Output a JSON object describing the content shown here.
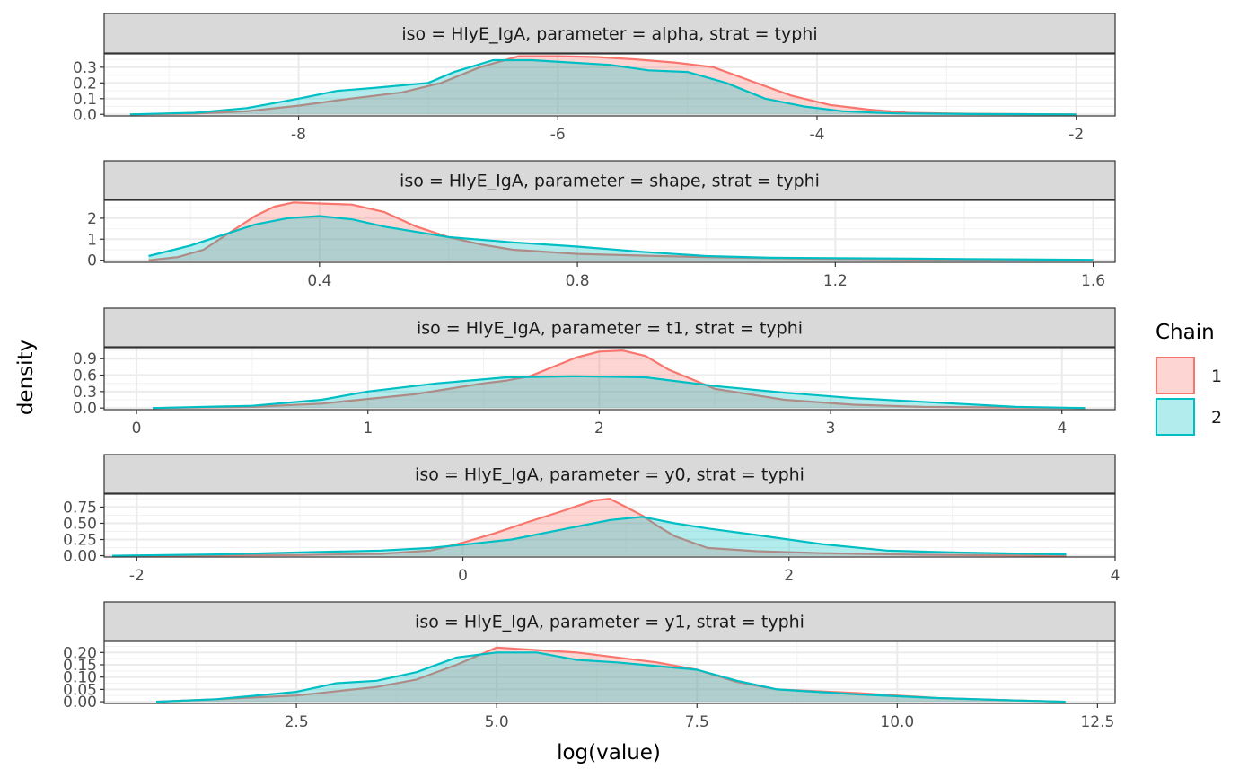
{
  "chart_data": {
    "type": "area",
    "xlabel": "log(value)",
    "ylabel": "density",
    "legend": {
      "title": "Chain",
      "placement": "right",
      "entries": [
        {
          "label": "1",
          "line_color": "#F8766D",
          "fill_color": "#F8766D"
        },
        {
          "label": "2",
          "line_color": "#00BFC4",
          "fill_color": "#00BFC4"
        }
      ]
    },
    "grid": true,
    "panels": [
      {
        "strip": "iso = HlyE_IgA, parameter = alpha, strat = typhi",
        "xlim": [
          -9.5,
          -1.7
        ],
        "ylim": [
          -0.01,
          0.385
        ],
        "x_ticks": [
          -8,
          -6,
          -4,
          -2
        ],
        "x_tick_labels": [
          "-8",
          "-6",
          "-4",
          "-2"
        ],
        "y_ticks": [
          0.0,
          0.1,
          0.2,
          0.3
        ],
        "y_tick_labels": [
          "0.0",
          "0.1",
          "0.2",
          "0.3"
        ],
        "series": [
          {
            "name": "1",
            "points": [
              [
                -9.3,
                0
              ],
              [
                -8.8,
                0.005
              ],
              [
                -8.4,
                0.02
              ],
              [
                -8.0,
                0.055
              ],
              [
                -7.6,
                0.1
              ],
              [
                -7.2,
                0.14
              ],
              [
                -6.9,
                0.2
              ],
              [
                -6.6,
                0.3
              ],
              [
                -6.3,
                0.37
              ],
              [
                -6.0,
                0.37
              ],
              [
                -5.7,
                0.365
              ],
              [
                -5.4,
                0.35
              ],
              [
                -5.1,
                0.33
              ],
              [
                -4.8,
                0.3
              ],
              [
                -4.5,
                0.21
              ],
              [
                -4.2,
                0.12
              ],
              [
                -3.9,
                0.06
              ],
              [
                -3.6,
                0.03
              ],
              [
                -3.3,
                0.01
              ],
              [
                -2.8,
                0.003
              ],
              [
                -2.0,
                0
              ]
            ]
          },
          {
            "name": "2",
            "points": [
              [
                -9.3,
                0
              ],
              [
                -8.8,
                0.01
              ],
              [
                -8.4,
                0.04
              ],
              [
                -8.0,
                0.1
              ],
              [
                -7.7,
                0.15
              ],
              [
                -7.4,
                0.17
              ],
              [
                -7.0,
                0.2
              ],
              [
                -6.8,
                0.27
              ],
              [
                -6.5,
                0.345
              ],
              [
                -6.2,
                0.345
              ],
              [
                -5.9,
                0.33
              ],
              [
                -5.6,
                0.315
              ],
              [
                -5.3,
                0.28
              ],
              [
                -5.0,
                0.27
              ],
              [
                -4.7,
                0.2
              ],
              [
                -4.4,
                0.1
              ],
              [
                -4.1,
                0.05
              ],
              [
                -3.8,
                0.02
              ],
              [
                -3.4,
                0.006
              ],
              [
                -2.8,
                0.002
              ],
              [
                -2.0,
                0
              ]
            ]
          }
        ]
      },
      {
        "strip": "iso = HlyE_IgA, parameter = shape, strat = typhi",
        "xlim": [
          0.066,
          1.634
        ],
        "ylim": [
          -0.1,
          2.85
        ],
        "x_ticks": [
          0.4,
          0.8,
          1.2,
          1.6
        ],
        "x_tick_labels": [
          "0.4",
          "0.8",
          "1.2",
          "1.6"
        ],
        "y_ticks": [
          0,
          1,
          2
        ],
        "y_tick_labels": [
          "0",
          "1",
          "2"
        ],
        "series": [
          {
            "name": "1",
            "points": [
              [
                0.135,
                0
              ],
              [
                0.18,
                0.15
              ],
              [
                0.22,
                0.5
              ],
              [
                0.26,
                1.3
              ],
              [
                0.3,
                2.1
              ],
              [
                0.33,
                2.55
              ],
              [
                0.36,
                2.75
              ],
              [
                0.4,
                2.7
              ],
              [
                0.45,
                2.65
              ],
              [
                0.5,
                2.3
              ],
              [
                0.55,
                1.6
              ],
              [
                0.6,
                1.1
              ],
              [
                0.65,
                0.75
              ],
              [
                0.7,
                0.5
              ],
              [
                0.8,
                0.3
              ],
              [
                0.9,
                0.22
              ],
              [
                1.0,
                0.15
              ],
              [
                1.1,
                0.1
              ],
              [
                1.2,
                0.06
              ],
              [
                1.4,
                0.03
              ],
              [
                1.6,
                0
              ]
            ]
          },
          {
            "name": "2",
            "points": [
              [
                0.135,
                0.2
              ],
              [
                0.2,
                0.7
              ],
              [
                0.25,
                1.2
              ],
              [
                0.3,
                1.7
              ],
              [
                0.35,
                2.0
              ],
              [
                0.4,
                2.1
              ],
              [
                0.45,
                1.95
              ],
              [
                0.5,
                1.6
              ],
              [
                0.55,
                1.35
              ],
              [
                0.6,
                1.1
              ],
              [
                0.7,
                0.85
              ],
              [
                0.8,
                0.65
              ],
              [
                0.9,
                0.4
              ],
              [
                1.0,
                0.2
              ],
              [
                1.1,
                0.12
              ],
              [
                1.2,
                0.1
              ],
              [
                1.4,
                0.06
              ],
              [
                1.6,
                0.02
              ]
            ]
          }
        ]
      },
      {
        "strip": "iso = HlyE_IgA, parameter = t1, strat = typhi",
        "xlim": [
          -0.14,
          4.23
        ],
        "ylim": [
          -0.03,
          1.1
        ],
        "x_ticks": [
          0,
          1,
          2,
          3,
          4
        ],
        "x_tick_labels": [
          "0",
          "1",
          "2",
          "3",
          "4"
        ],
        "y_ticks": [
          0.0,
          0.3,
          0.6,
          0.9
        ],
        "y_tick_labels": [
          "0.0",
          "0.3",
          "0.6",
          "0.9"
        ],
        "series": [
          {
            "name": "1",
            "points": [
              [
                0.07,
                0
              ],
              [
                0.5,
                0.02
              ],
              [
                0.8,
                0.08
              ],
              [
                1.2,
                0.25
              ],
              [
                1.5,
                0.45
              ],
              [
                1.6,
                0.5
              ],
              [
                1.7,
                0.58
              ],
              [
                1.8,
                0.75
              ],
              [
                1.9,
                0.92
              ],
              [
                2.0,
                1.03
              ],
              [
                2.1,
                1.05
              ],
              [
                2.2,
                0.95
              ],
              [
                2.3,
                0.7
              ],
              [
                2.5,
                0.35
              ],
              [
                2.8,
                0.15
              ],
              [
                3.1,
                0.06
              ],
              [
                3.4,
                0.02
              ],
              [
                4.1,
                0
              ]
            ]
          },
          {
            "name": "2",
            "points": [
              [
                0.07,
                0
              ],
              [
                0.5,
                0.04
              ],
              [
                0.8,
                0.15
              ],
              [
                1.0,
                0.3
              ],
              [
                1.3,
                0.45
              ],
              [
                1.6,
                0.56
              ],
              [
                1.9,
                0.58
              ],
              [
                2.2,
                0.56
              ],
              [
                2.5,
                0.4
              ],
              [
                2.8,
                0.28
              ],
              [
                3.1,
                0.18
              ],
              [
                3.5,
                0.09
              ],
              [
                3.8,
                0.02
              ],
              [
                4.1,
                0
              ]
            ]
          }
        ]
      },
      {
        "strip": "iso = HlyE_IgA, parameter = y0, strat = typhi",
        "xlim": [
          -2.2,
          4.0
        ],
        "ylim": [
          -0.02,
          0.95
        ],
        "x_ticks": [
          -2,
          0,
          2,
          4
        ],
        "x_tick_labels": [
          "-2",
          "0",
          "2",
          "4"
        ],
        "y_ticks": [
          0.0,
          0.25,
          0.5,
          0.75
        ],
        "y_tick_labels": [
          "0.00",
          "0.25",
          "0.50",
          "0.75"
        ],
        "series": [
          {
            "name": "1",
            "points": [
              [
                -2.15,
                0
              ],
              [
                -1.0,
                0.01
              ],
              [
                -0.5,
                0.03
              ],
              [
                -0.2,
                0.08
              ],
              [
                0.0,
                0.2
              ],
              [
                0.2,
                0.35
              ],
              [
                0.4,
                0.52
              ],
              [
                0.6,
                0.68
              ],
              [
                0.8,
                0.85
              ],
              [
                0.9,
                0.88
              ],
              [
                1.0,
                0.75
              ],
              [
                1.1,
                0.62
              ],
              [
                1.2,
                0.45
              ],
              [
                1.3,
                0.3
              ],
              [
                1.5,
                0.12
              ],
              [
                1.8,
                0.07
              ],
              [
                2.2,
                0.04
              ],
              [
                2.8,
                0.015
              ],
              [
                3.7,
                0
              ]
            ]
          },
          {
            "name": "2",
            "points": [
              [
                -2.15,
                0
              ],
              [
                -1.5,
                0.02
              ],
              [
                -1.0,
                0.05
              ],
              [
                -0.5,
                0.08
              ],
              [
                -0.2,
                0.12
              ],
              [
                0.0,
                0.17
              ],
              [
                0.3,
                0.25
              ],
              [
                0.6,
                0.4
              ],
              [
                0.9,
                0.55
              ],
              [
                1.1,
                0.6
              ],
              [
                1.3,
                0.5
              ],
              [
                1.5,
                0.42
              ],
              [
                1.8,
                0.32
              ],
              [
                2.2,
                0.18
              ],
              [
                2.6,
                0.08
              ],
              [
                3.0,
                0.05
              ],
              [
                3.7,
                0.02
              ]
            ]
          }
        ]
      },
      {
        "strip": "iso = HlyE_IgA, parameter = y1, strat = typhi",
        "xlim": [
          0.1,
          12.72
        ],
        "ylim": [
          -0.007,
          0.245
        ],
        "x_ticks": [
          2.5,
          5.0,
          7.5,
          10.0,
          12.5
        ],
        "x_tick_labels": [
          "2.5",
          "5.0",
          "7.5",
          "10.0",
          "12.5"
        ],
        "y_ticks": [
          0.0,
          0.05,
          0.1,
          0.15,
          0.2
        ],
        "y_tick_labels": [
          "0.00",
          "0.05",
          "0.10",
          "0.15",
          "0.20"
        ],
        "series": [
          {
            "name": "1",
            "points": [
              [
                0.75,
                0
              ],
              [
                1.5,
                0.01
              ],
              [
                2.5,
                0.025
              ],
              [
                3.5,
                0.06
              ],
              [
                4.0,
                0.09
              ],
              [
                4.5,
                0.15
              ],
              [
                5.0,
                0.22
              ],
              [
                5.5,
                0.21
              ],
              [
                6.0,
                0.2
              ],
              [
                6.5,
                0.18
              ],
              [
                7.0,
                0.16
              ],
              [
                7.5,
                0.13
              ],
              [
                8.0,
                0.08
              ],
              [
                8.5,
                0.05
              ],
              [
                9.5,
                0.035
              ],
              [
                10.5,
                0.015
              ],
              [
                11.5,
                0.005
              ],
              [
                12.1,
                0
              ]
            ]
          },
          {
            "name": "2",
            "points": [
              [
                0.75,
                0
              ],
              [
                1.5,
                0.01
              ],
              [
                2.5,
                0.04
              ],
              [
                3.0,
                0.075
              ],
              [
                3.5,
                0.085
              ],
              [
                4.0,
                0.12
              ],
              [
                4.5,
                0.18
              ],
              [
                5.0,
                0.2
              ],
              [
                5.5,
                0.2
              ],
              [
                6.0,
                0.17
              ],
              [
                6.5,
                0.16
              ],
              [
                7.0,
                0.145
              ],
              [
                7.5,
                0.13
              ],
              [
                8.0,
                0.085
              ],
              [
                8.5,
                0.05
              ],
              [
                9.5,
                0.03
              ],
              [
                10.5,
                0.015
              ],
              [
                11.5,
                0.005
              ],
              [
                12.1,
                0
              ]
            ]
          }
        ]
      }
    ]
  }
}
